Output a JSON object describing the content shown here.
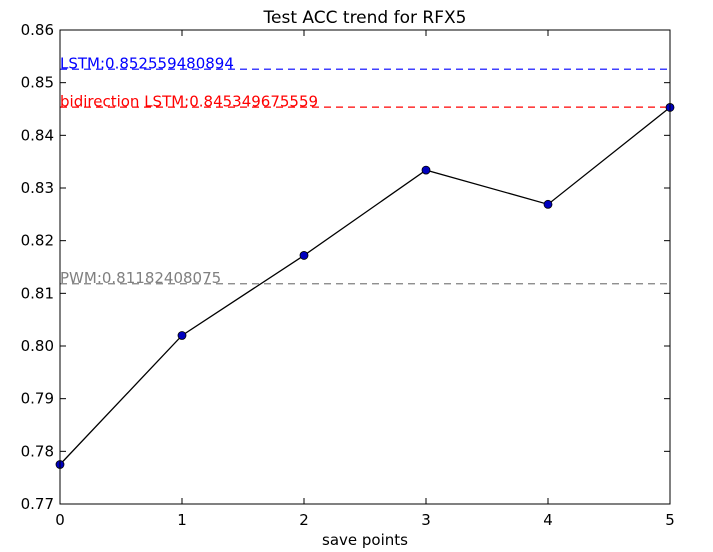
{
  "chart_data": {
    "type": "line",
    "title": "Test ACC trend for RFX5",
    "xlabel": "save points",
    "ylabel": "",
    "xlim": [
      0,
      5
    ],
    "ylim": [
      0.77,
      0.86
    ],
    "x_ticks": [
      "0",
      "1",
      "2",
      "3",
      "4",
      "5"
    ],
    "y_ticks": [
      "0.77",
      "0.78",
      "0.79",
      "0.80",
      "0.81",
      "0.82",
      "0.83",
      "0.84",
      "0.85",
      "0.86"
    ],
    "grid": false,
    "series": [
      {
        "x": [
          0,
          1,
          2,
          3,
          4,
          5
        ],
        "values": [
          0.7775,
          0.802,
          0.8172,
          0.8334,
          0.8269,
          0.8453
        ],
        "line_color": "#000000",
        "marker_color": "#0000bf"
      }
    ],
    "reference_lines": [
      {
        "label": "LSTM:0.852559480894",
        "value": 0.852559480894,
        "color": "#0000ff",
        "style": "dashed"
      },
      {
        "label": "bidirection LSTM:0.845349675559",
        "value": 0.845349675559,
        "color": "#ff0000",
        "style": "dashed"
      },
      {
        "label": "PWM:0.81182408075",
        "value": 0.81182408075,
        "color": "#808080",
        "style": "dashed"
      }
    ]
  }
}
